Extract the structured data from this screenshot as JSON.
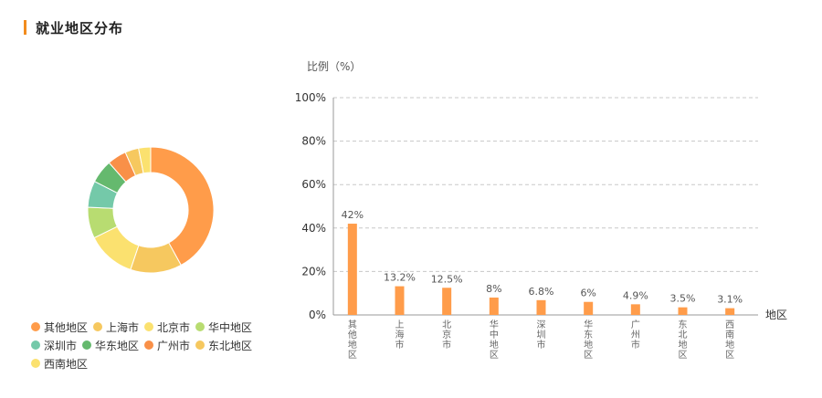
{
  "header": {
    "title": "就业地区分布"
  },
  "chart_data": [
    {
      "type": "pie",
      "variant": "donut",
      "labels": [
        "其他地区",
        "上海市",
        "北京市",
        "华中地区",
        "深圳市",
        "华东地区",
        "广州市",
        "东北地区",
        "西南地区"
      ],
      "values": [
        42,
        13.2,
        12.5,
        8,
        6.8,
        6,
        4.9,
        3.5,
        3.1
      ],
      "colors": [
        "#ff9c4a",
        "#f6c85f",
        "#fbe16f",
        "#b8dc71",
        "#74c9a9",
        "#65b96e",
        "#f99048",
        "#f6c85f",
        "#fbe16f"
      ],
      "legend": "bottom-left"
    },
    {
      "type": "bar",
      "ylabel": "比例（%）",
      "xlabel": "地区",
      "categories": [
        "其他地区",
        "上海市",
        "北京市",
        "华中地区",
        "深圳市",
        "华东地区",
        "广州市",
        "东北地区",
        "西南地区"
      ],
      "values": [
        42,
        13.2,
        12.5,
        8,
        6.8,
        6,
        4.9,
        3.5,
        3.1
      ],
      "data_labels": [
        "42%",
        "13.2%",
        "12.5%",
        "8%",
        "6.8%",
        "6%",
        "4.9%",
        "3.5%",
        "3.1%"
      ],
      "ylim": [
        0,
        100
      ],
      "yticks": [
        "0%",
        "20%",
        "40%",
        "60%",
        "80%",
        "100%"
      ],
      "grid": true,
      "bar_color": "#ff9c4a"
    }
  ]
}
